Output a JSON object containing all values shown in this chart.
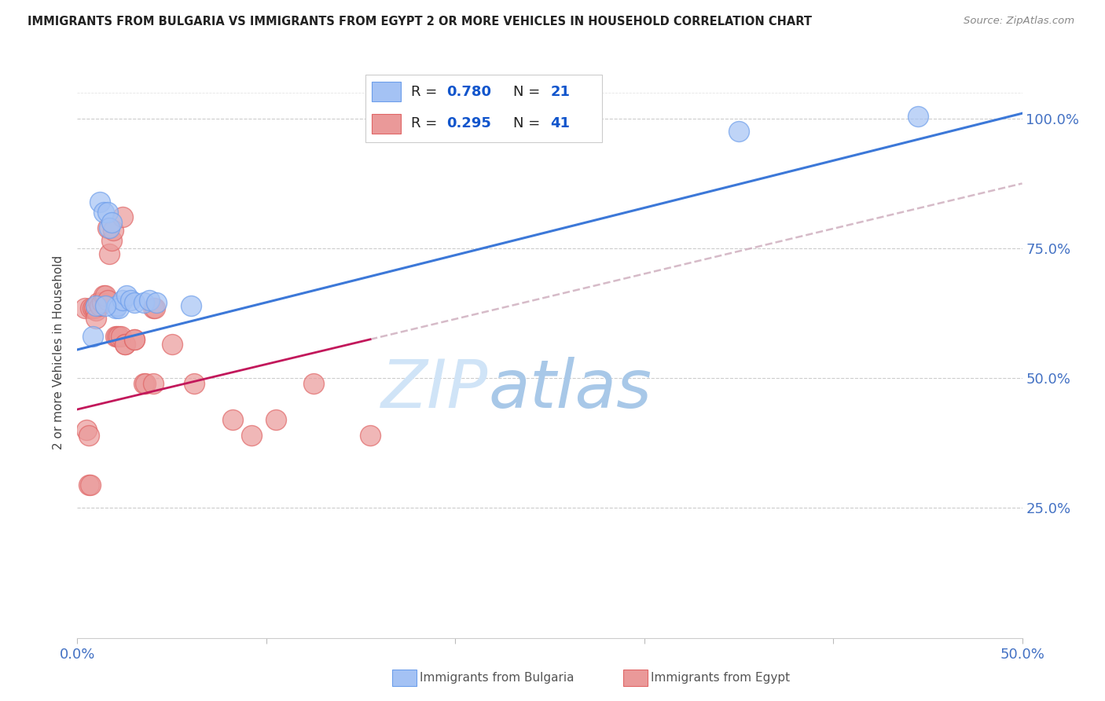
{
  "title": "IMMIGRANTS FROM BULGARIA VS IMMIGRANTS FROM EGYPT 2 OR MORE VEHICLES IN HOUSEHOLD CORRELATION CHART",
  "source": "Source: ZipAtlas.com",
  "ylabel": "2 or more Vehicles in Household",
  "legend_bulgaria_R": "0.780",
  "legend_bulgaria_N": "21",
  "legend_egypt_R": "0.295",
  "legend_egypt_N": "41",
  "bulgaria_scatter_color": "#a4c2f4",
  "bulgaria_scatter_edge": "#6d9eeb",
  "egypt_scatter_color": "#ea9999",
  "egypt_scatter_edge": "#e06666",
  "line_bulgaria_color": "#3c78d8",
  "line_egypt_color": "#c2185b",
  "axis_label_color": "#4472c4",
  "legend_text_color": "#1155cc",
  "watermark_zip_color": "#c9d9f0",
  "watermark_atlas_color": "#8ab4d8",
  "grid_color": "#cccccc",
  "xlim": [
    0.0,
    0.5
  ],
  "ylim": [
    0.0,
    1.1
  ],
  "bulgaria_x": [
    0.008,
    0.012,
    0.014,
    0.016,
    0.017,
    0.018,
    0.02,
    0.021,
    0.022,
    0.024,
    0.026,
    0.028,
    0.03,
    0.035,
    0.038,
    0.042,
    0.35,
    0.445,
    0.01,
    0.015,
    0.06
  ],
  "bulgaria_y": [
    0.58,
    0.84,
    0.82,
    0.82,
    0.79,
    0.8,
    0.635,
    0.64,
    0.635,
    0.65,
    0.66,
    0.65,
    0.645,
    0.645,
    0.65,
    0.645,
    0.975,
    1.005,
    0.64,
    0.64,
    0.64
  ],
  "egypt_x": [
    0.004,
    0.005,
    0.006,
    0.007,
    0.008,
    0.009,
    0.01,
    0.01,
    0.011,
    0.012,
    0.013,
    0.014,
    0.015,
    0.016,
    0.016,
    0.017,
    0.018,
    0.019,
    0.02,
    0.021,
    0.022,
    0.023,
    0.025,
    0.025,
    0.03,
    0.03,
    0.035,
    0.036,
    0.04,
    0.04,
    0.041,
    0.05,
    0.062,
    0.082,
    0.092,
    0.105,
    0.125,
    0.155,
    0.024,
    0.006,
    0.007
  ],
  "egypt_y": [
    0.635,
    0.4,
    0.39,
    0.635,
    0.635,
    0.635,
    0.63,
    0.615,
    0.645,
    0.64,
    0.645,
    0.66,
    0.66,
    0.65,
    0.79,
    0.74,
    0.765,
    0.785,
    0.58,
    0.58,
    0.58,
    0.58,
    0.565,
    0.565,
    0.575,
    0.575,
    0.49,
    0.49,
    0.49,
    0.635,
    0.635,
    0.565,
    0.49,
    0.42,
    0.39,
    0.42,
    0.49,
    0.39,
    0.81,
    0.295,
    0.295
  ]
}
